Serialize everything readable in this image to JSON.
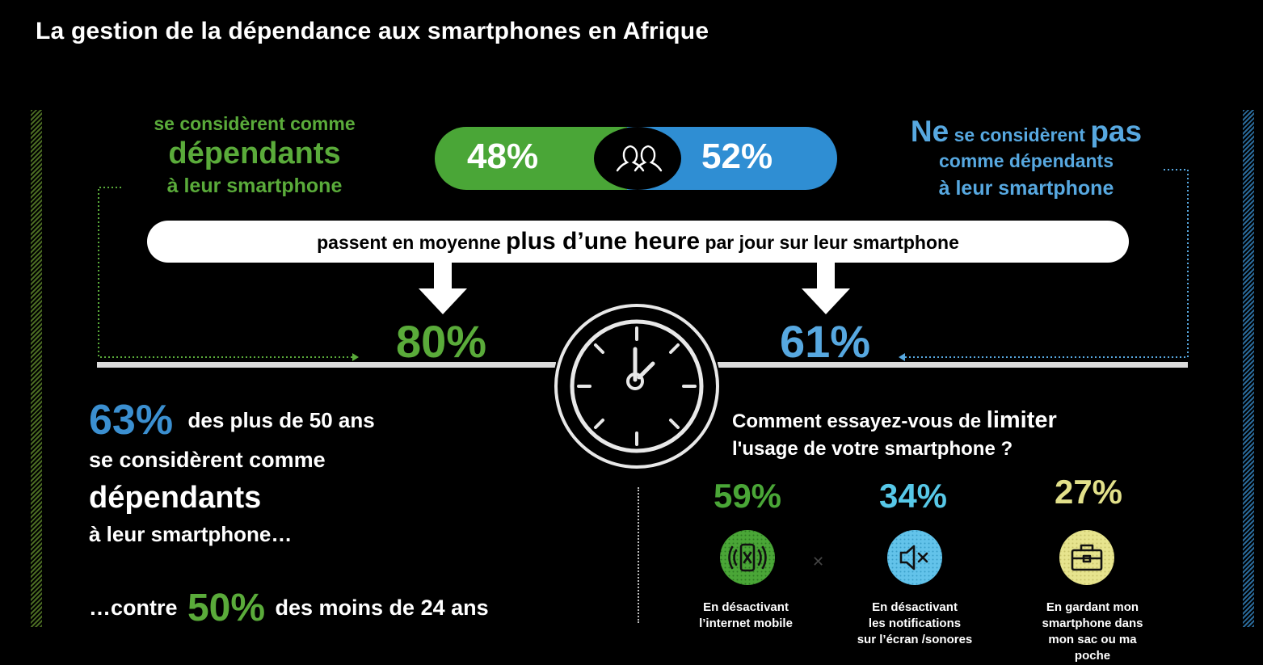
{
  "title": "La gestion de la dépendance aux smartphones en Afrique",
  "colors": {
    "green": "#4aa637",
    "blue": "#2f8ed3",
    "cyan": "#57c8e8",
    "yellow": "#e2e08a"
  },
  "left_heading": {
    "line1": "se considèrent comme",
    "line2": "dépendants",
    "line3": "à leur smartphone"
  },
  "right_heading": {
    "line1_a": "Ne",
    "line1_b": "se considèrent",
    "line1_c": "pas",
    "line2": "comme dépendants",
    "line3": "à leur smartphone"
  },
  "split": {
    "dependent_pct": "48%",
    "not_dependent_pct": "52%",
    "icon": "people-icon"
  },
  "banner": {
    "before": "passent en moyenne",
    "highlight": "plus d’une heure",
    "after": "par jour sur leur smartphone"
  },
  "usage": {
    "dependent_pct": "80%",
    "not_dependent_pct": "61%",
    "icon": "stopwatch-icon"
  },
  "age_block": {
    "pct_over50": "63%",
    "line1": "des plus de 50 ans",
    "line2": "se considèrent comme",
    "line3": "dépendants",
    "line4": "à leur smartphone…",
    "contre_before": "…contre",
    "pct_under24": "50%",
    "contre_after": "des moins de 24 ans"
  },
  "question": {
    "part1": "Comment essayez-vous de",
    "highlight": "limiter",
    "line2": "l'usage de votre smartphone ?"
  },
  "methods": [
    {
      "pct": "59%",
      "color": "#4aa637",
      "icon": "phone-signal-off-icon",
      "caption_lines": [
        "En désactivant",
        "l’internet mobile"
      ]
    },
    {
      "pct": "34%",
      "color": "#57c8e8",
      "icon": "speaker-mute-icon",
      "caption_lines": [
        "En désactivant",
        "les notifications",
        "sur l’écran /sonores"
      ]
    },
    {
      "pct": "27%",
      "color": "#e2e08a",
      "icon": "briefcase-icon",
      "caption_lines": [
        "En gardant mon",
        "smartphone dans",
        "mon sac ou ma",
        "poche"
      ]
    }
  ]
}
